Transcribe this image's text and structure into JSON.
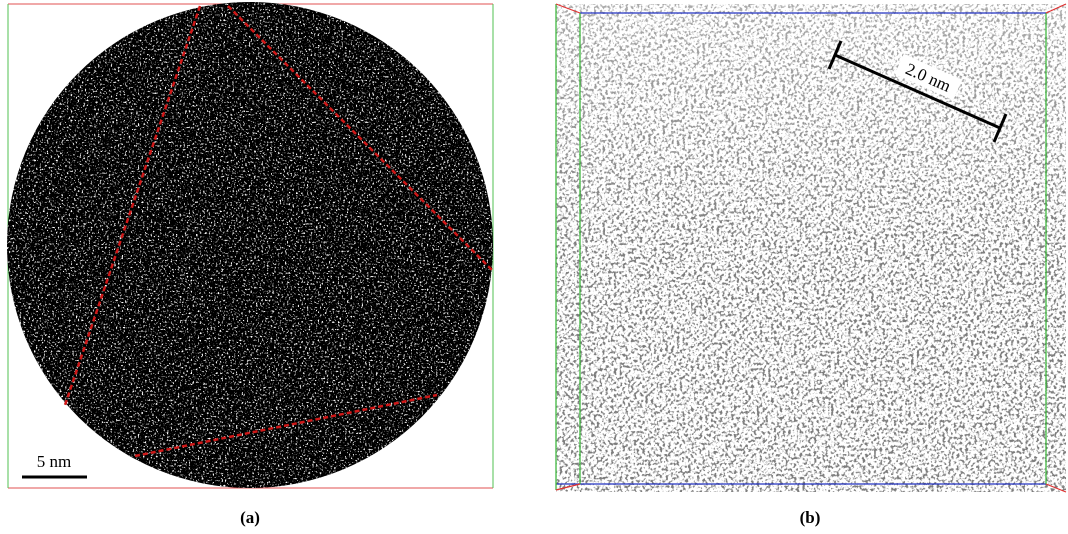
{
  "panels": [
    {
      "scale_bar": "5 nm",
      "caption": "(a)"
    },
    {
      "scale_bar": "2.0 nm",
      "caption": "(b)"
    }
  ]
}
